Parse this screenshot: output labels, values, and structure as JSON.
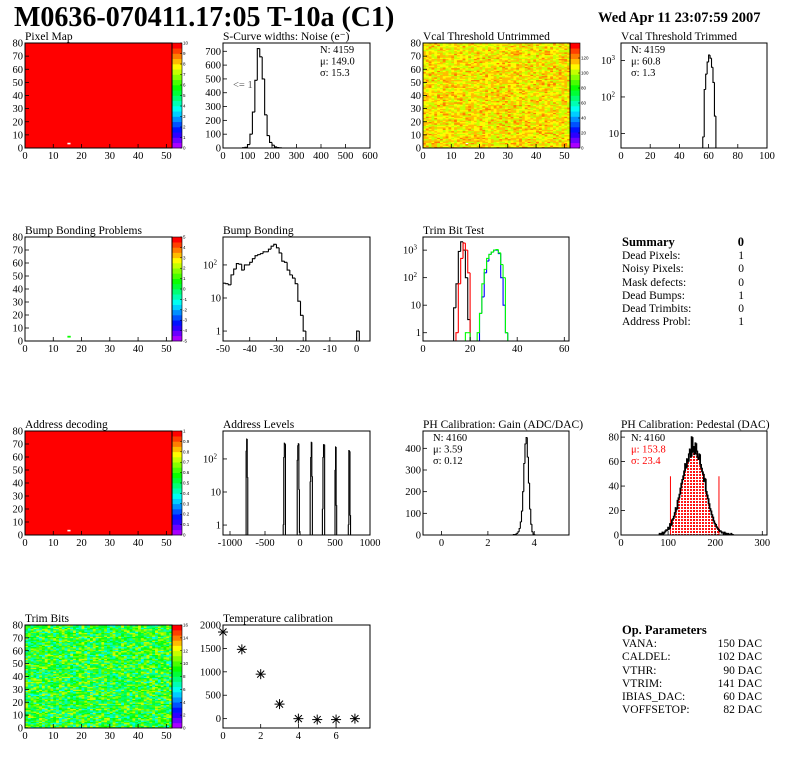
{
  "title": "M0636-070411.17:05 T-10a (C1)",
  "date": "Wed Apr 11 23:07:59 2007",
  "summary": {
    "heading": "Summary",
    "heading_value": "0",
    "rows": [
      {
        "label": "Dead Pixels:",
        "value": "1"
      },
      {
        "label": "Noisy Pixels:",
        "value": "0"
      },
      {
        "label": "Mask defects:",
        "value": "0"
      },
      {
        "label": "Dead Bumps:",
        "value": "1"
      },
      {
        "label": "Dead Trimbits:",
        "value": "0"
      },
      {
        "label": "Address Probl:",
        "value": "1"
      }
    ]
  },
  "op_parameters": {
    "heading": "Op. Parameters",
    "rows": [
      {
        "label": "VANA:",
        "value": "150 DAC"
      },
      {
        "label": "CALDEL:",
        "value": "102 DAC"
      },
      {
        "label": "VTHR:",
        "value": "90 DAC"
      },
      {
        "label": "VTRIM:",
        "value": "141 DAC"
      },
      {
        "label": "IBIAS_DAC:",
        "value": "60 DAC"
      },
      {
        "label": "VOFFSETOP:",
        "value": "82 DAC"
      }
    ]
  },
  "chart_data": [
    {
      "id": "pixel_map",
      "type": "heatmap",
      "title": "Pixel Map",
      "xlim": [
        0,
        52
      ],
      "ylim": [
        0,
        80
      ],
      "xticks": [
        0,
        10,
        20,
        30,
        40,
        50
      ],
      "yticks": [
        0,
        10,
        20,
        30,
        40,
        50,
        60,
        70,
        80
      ],
      "nx": 52,
      "ny": 80,
      "zlim": [
        0,
        10
      ],
      "zticks": [
        0,
        1,
        2,
        3,
        4,
        5,
        6,
        7,
        8,
        9,
        10
      ],
      "value": 10,
      "empty_pixels": [
        [
          15,
          3
        ]
      ]
    },
    {
      "id": "s_curve",
      "type": "histogram",
      "title": "S-Curve widths: Noise (e⁻)",
      "xlim": [
        0,
        600
      ],
      "ylim": [
        0,
        760
      ],
      "xticks": [
        0,
        100,
        200,
        300,
        400,
        500,
        600
      ],
      "yticks": [
        0,
        100,
        200,
        300,
        400,
        500,
        600,
        700
      ],
      "series": [
        {
          "color": "#000000",
          "start": 80,
          "width": 10,
          "counts": [
            2,
            5,
            25,
            100,
            260,
            490,
            720,
            660,
            500,
            240,
            90,
            40,
            20,
            8,
            3,
            1
          ]
        }
      ],
      "stats": [
        "N: 4159",
        "μ: 149.0",
        "σ: 15.3"
      ],
      "stats_position": "top-right",
      "annotation": "<= 1"
    },
    {
      "id": "vcal_untrimmed",
      "type": "heatmap",
      "title": "Vcal Threshold Untrimmed",
      "xlim": [
        0,
        52
      ],
      "ylim": [
        0,
        80
      ],
      "xticks": [
        0,
        10,
        20,
        30,
        40,
        50
      ],
      "yticks": [
        0,
        10,
        20,
        30,
        40,
        50,
        60,
        70,
        80
      ],
      "nx": 52,
      "ny": 80,
      "zlim": [
        0,
        140
      ],
      "zticks": [
        0,
        20,
        40,
        60,
        80,
        100,
        120
      ],
      "value_mean": 110,
      "value_spread": 22,
      "empty_pixels": [
        [
          15,
          3
        ]
      ]
    },
    {
      "id": "vcal_trimmed",
      "type": "histogram",
      "title": "Vcal Threshold Trimmed",
      "logy": true,
      "xlim": [
        0,
        100
      ],
      "ylim": [
        4,
        3000
      ],
      "xticks": [
        0,
        20,
        40,
        60,
        80,
        100
      ],
      "yticks": [
        10,
        100,
        1000
      ],
      "series": [
        {
          "color": "#000000",
          "start": 56,
          "width": 1,
          "counts": [
            8,
            160,
            420,
            900,
            1400,
            1150,
            650,
            250,
            30
          ]
        }
      ],
      "stats": [
        "N: 4159",
        "μ: 60.8",
        "σ:  1.3"
      ],
      "stats_position": "top-left"
    },
    {
      "id": "bump_problems",
      "type": "heatmap",
      "title": "Bump Bonding Problems",
      "xlim": [
        0,
        52
      ],
      "ylim": [
        0,
        80
      ],
      "xticks": [
        0,
        10,
        20,
        30,
        40,
        50
      ],
      "yticks": [
        0,
        10,
        20,
        30,
        40,
        50,
        60,
        70,
        80
      ],
      "nx": 52,
      "ny": 80,
      "zlim": [
        -5,
        5
      ],
      "zticks": [
        -5,
        -4,
        -3,
        -2,
        -1,
        0,
        1,
        2,
        3,
        4,
        5
      ],
      "filled_pixels": [
        [
          15,
          3,
          0.5
        ]
      ]
    },
    {
      "id": "bump_bonding",
      "type": "histogram",
      "title": "Bump Bonding",
      "logy": true,
      "xlim": [
        -50,
        5
      ],
      "ylim": [
        0.5,
        700
      ],
      "xticks": [
        -50,
        -40,
        -30,
        -20,
        -10,
        0
      ],
      "yticks": [
        1,
        10,
        100
      ],
      "series": [
        {
          "color": "#000000",
          "start": -50,
          "width": 1,
          "counts": [
            28,
            27,
            25,
            50,
            75,
            110,
            105,
            70,
            100,
            100,
            120,
            155,
            190,
            205,
            220,
            250,
            250,
            300,
            370,
            420,
            330,
            230,
            130,
            120,
            70,
            50,
            40,
            27,
            8,
            3,
            1,
            0
          ]
        },
        {
          "color": "#000000",
          "start": 0,
          "width": 1,
          "counts": [
            1
          ]
        }
      ]
    },
    {
      "id": "trim_bit_test",
      "type": "histogram",
      "title": "Trim Bit Test",
      "logy": true,
      "xlim": [
        0,
        62
      ],
      "ylim": [
        0.5,
        3000
      ],
      "xticks": [
        0,
        20,
        40,
        60
      ],
      "yticks": [
        1,
        10,
        100,
        1000
      ],
      "series": [
        {
          "color": "#000000",
          "start": 13,
          "width": 1,
          "counts": [
            8,
            60,
            900,
            2000,
            1000,
            100,
            3,
            0
          ]
        },
        {
          "color": "#ff0000",
          "start": 14,
          "width": 1,
          "counts": [
            1,
            60,
            500,
            1800,
            1000,
            150,
            0
          ]
        },
        {
          "color": "#0000ff",
          "start": 23,
          "width": 1,
          "counts": [
            0,
            5,
            20,
            150,
            400,
            700,
            850,
            1000,
            1000,
            750,
            100,
            10,
            1,
            0
          ]
        },
        {
          "color": "#00ff00",
          "start": 18,
          "width": 1,
          "counts": [
            1,
            1,
            0,
            0,
            0,
            1,
            5,
            60,
            200,
            500,
            700,
            850,
            1000,
            1050,
            800,
            300,
            100,
            1,
            0
          ]
        }
      ]
    },
    {
      "id": "address_decoding",
      "type": "heatmap",
      "title": "Address decoding",
      "xlim": [
        0,
        52
      ],
      "ylim": [
        0,
        80
      ],
      "xticks": [
        0,
        10,
        20,
        30,
        40,
        50
      ],
      "yticks": [
        0,
        10,
        20,
        30,
        40,
        50,
        60,
        70,
        80
      ],
      "nx": 52,
      "ny": 80,
      "zlim": [
        0,
        1
      ],
      "zticks": [
        0,
        0.1,
        0.2,
        0.3,
        0.4,
        0.5,
        0.6,
        0.7,
        0.8,
        0.9,
        1
      ],
      "value": 1,
      "empty_pixels": [
        [
          15,
          3
        ]
      ]
    },
    {
      "id": "address_levels",
      "type": "histogram",
      "title": "Address Levels",
      "logy": true,
      "xlim": [
        -1100,
        1000
      ],
      "ylim": [
        0.5,
        700
      ],
      "xticks": [
        -1000,
        -500,
        0,
        500,
        1000
      ],
      "yticks": [
        1,
        10,
        100
      ],
      "series": [
        {
          "color": "#000000",
          "start": -770,
          "width": 8,
          "counts": [
            170,
            400,
            28
          ]
        },
        {
          "color": "#000000",
          "start": -240,
          "width": 8,
          "counts": [
            1,
            110,
            300,
            280
          ]
        },
        {
          "color": "#000000",
          "start": -40,
          "width": 8,
          "counts": [
            90,
            250,
            290,
            12,
            0.6
          ]
        },
        {
          "color": "#000000",
          "start": 145,
          "width": 8,
          "counts": [
            20,
            110,
            320,
            30
          ]
        },
        {
          "color": "#000000",
          "start": 320,
          "width": 8,
          "counts": [
            3,
            110,
            270,
            270
          ]
        },
        {
          "color": "#000000",
          "start": 500,
          "width": 8,
          "counts": [
            45,
            230,
            4
          ]
        },
        {
          "color": "#000000",
          "start": 690,
          "width": 8,
          "counts": [
            1,
            180,
            170,
            2
          ]
        }
      ]
    },
    {
      "id": "ph_gain",
      "type": "histogram",
      "title": "PH Calibration: Gain (ADC/DAC)",
      "xlim": [
        -0.8,
        5.5
      ],
      "ylim": [
        0,
        480
      ],
      "xticks": [
        0,
        2,
        4
      ],
      "yticks": [
        0,
        100,
        200,
        300,
        400
      ],
      "series": [
        {
          "color": "#000000",
          "start": 3.1,
          "width": 0.05,
          "counts": [
            2,
            2,
            4,
            8,
            15,
            30,
            60,
            110,
            200,
            330,
            420,
            450,
            360,
            240,
            120,
            50,
            15,
            4,
            1
          ]
        }
      ],
      "stats": [
        "N: 4160",
        "μ: 3.59",
        "σ: 0.12"
      ],
      "stats_position": "top-left"
    },
    {
      "id": "ph_pedestal",
      "type": "histogram",
      "title": "PH Calibration: Pedestal (DAC)",
      "xlim": [
        0,
        310
      ],
      "ylim": [
        0,
        85
      ],
      "xticks": [
        0,
        100,
        200,
        300
      ],
      "yticks": [
        0,
        20,
        40,
        60,
        80
      ],
      "series": [
        {
          "color": "#000000",
          "start": 80,
          "width": 2,
          "counts": [
            0,
            1,
            0,
            1,
            2,
            1,
            2,
            3,
            4,
            4,
            6,
            5,
            9,
            8,
            12,
            13,
            15,
            18,
            22,
            21,
            28,
            30,
            33,
            38,
            42,
            45,
            48,
            52,
            58,
            55,
            62,
            60,
            66,
            70,
            64,
            80,
            68,
            72,
            66,
            75,
            69,
            64,
            62,
            66,
            58,
            55,
            52,
            50,
            44,
            46,
            36,
            33,
            30,
            26,
            22,
            20,
            17,
            15,
            12,
            10,
            9,
            7,
            6,
            5,
            4,
            3,
            3,
            2,
            2,
            1,
            2,
            1,
            1,
            0,
            1,
            0,
            0,
            1,
            0,
            0
          ]
        }
      ],
      "fit": {
        "color": "#ff0000",
        "range": [
          105,
          208
        ],
        "marker_height": 48
      },
      "stats": [
        "N: 4160",
        "μ: 153.8",
        "σ: 23.4"
      ],
      "stats_colors": [
        "#000000",
        "#ff0000",
        "#ff0000"
      ],
      "stats_position": "top-left"
    },
    {
      "id": "trim_bits",
      "type": "heatmap",
      "title": "Trim Bits",
      "xlim": [
        0,
        52
      ],
      "ylim": [
        0,
        80
      ],
      "xticks": [
        0,
        10,
        20,
        30,
        40,
        50
      ],
      "yticks": [
        0,
        10,
        20,
        30,
        40,
        50,
        60,
        70,
        80
      ],
      "nx": 52,
      "ny": 80,
      "zlim": [
        0,
        16
      ],
      "zticks": [
        0,
        2,
        4,
        6,
        8,
        10,
        12,
        14,
        16
      ],
      "value_mean": 9,
      "value_spread": 6
    },
    {
      "id": "temperature",
      "type": "scatter",
      "title": "Temperature calibration",
      "marker": "star",
      "xlim": [
        0,
        7.8
      ],
      "ylim": [
        -200,
        2000
      ],
      "xticks": [
        0,
        2,
        4,
        6
      ],
      "yticks": [
        0,
        500,
        1000,
        1500,
        2000
      ],
      "x": [
        0,
        1,
        2,
        3,
        4,
        5,
        6,
        7
      ],
      "y": [
        1850,
        1480,
        950,
        310,
        0,
        -20,
        -20,
        0
      ]
    }
  ]
}
